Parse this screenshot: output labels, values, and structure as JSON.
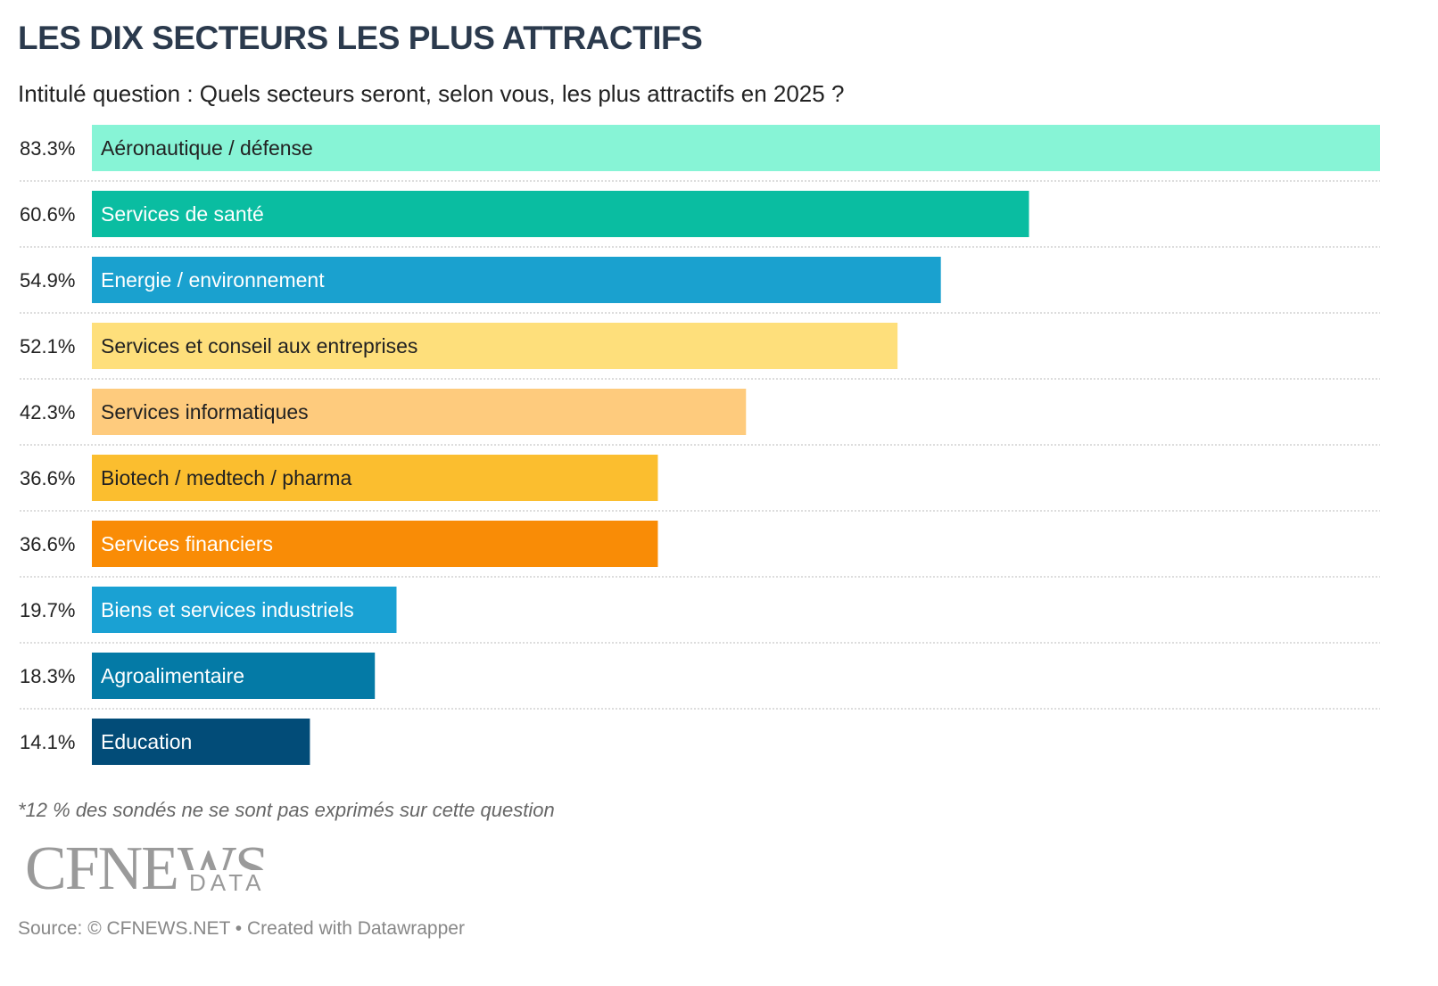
{
  "chart_data": {
    "type": "bar",
    "orientation": "horizontal",
    "title": "LES DIX SECTEURS LES PLUS ATTRACTIFS",
    "subtitle": "Intitulé question : Quels secteurs seront, selon vous, les plus attractifs en 2025 ?",
    "unit": "%",
    "xlim": [
      0,
      83.3
    ],
    "categories": [
      "Aéronautique / défense",
      "Services de santé",
      "Energie / environnement",
      "Services et conseil aux entreprises",
      "Services informatiques",
      "Biotech / medtech / pharma",
      "Services financiers",
      "Biens et services industriels",
      "Agroalimentaire",
      "Education"
    ],
    "values": [
      83.3,
      60.6,
      54.9,
      52.1,
      42.3,
      36.6,
      36.6,
      19.7,
      18.3,
      14.1
    ],
    "value_labels": [
      "83.3%",
      "60.6%",
      "54.9%",
      "52.1%",
      "42.3%",
      "36.6%",
      "36.6%",
      "19.7%",
      "18.3%",
      "14.1%"
    ],
    "colors": [
      "#87f4d6",
      "#0abda1",
      "#1aa1cf",
      "#fedf7b",
      "#fecb7d",
      "#fbbe2f",
      "#f98c06",
      "#1aa1d3",
      "#047aa6",
      "#024c78"
    ],
    "label_colors": [
      "#222222",
      "#ffffff",
      "#ffffff",
      "#222222",
      "#222222",
      "#222222",
      "#ffffff",
      "#ffffff",
      "#ffffff",
      "#ffffff"
    ]
  },
  "note": "*12 % des sondés ne se sont pas exprimés sur cette question",
  "logo": {
    "word": "CFNEWS",
    "sub": "DATA"
  },
  "footer": "Source: © CFNEWS.NET • Created with Datawrapper"
}
